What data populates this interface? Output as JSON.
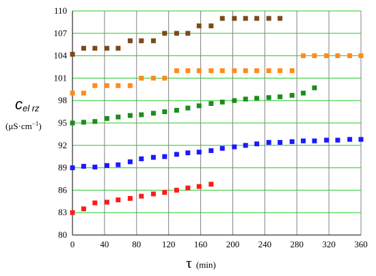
{
  "chart_data": {
    "type": "scatter",
    "title": "",
    "ylabel": {
      "symbol": "c",
      "subscript": "el rz",
      "unit_prefix": "(μS·cm",
      "unit_exp": "−1",
      "unit_suffix": ")"
    },
    "xlabel": {
      "symbol": "τ",
      "unit": "(min)"
    },
    "xlim": [
      0,
      360
    ],
    "ylim": [
      80,
      110
    ],
    "x_ticks": [
      "0",
      "40",
      "80",
      "120",
      "160",
      "200",
      "240",
      "280",
      "320",
      "360"
    ],
    "y_ticks": [
      "80",
      "83",
      "86",
      "89",
      "92",
      "95",
      "98",
      "101",
      "104",
      "107",
      "110"
    ],
    "grid": {
      "horizontal_color": "#22cc22",
      "vertical_color": "#808080"
    },
    "series": [
      {
        "color": "#7a4a1a",
        "x": [
          0,
          14,
          28,
          43,
          57,
          72,
          86,
          101,
          115,
          130,
          144,
          158,
          173,
          187,
          202,
          216,
          230,
          245,
          259
        ],
        "y": [
          104.2,
          105,
          105,
          105,
          105,
          106,
          106,
          106,
          107,
          107,
          107,
          108,
          108,
          109,
          109,
          109,
          109,
          109,
          109
        ]
      },
      {
        "color": "#ff8c1a",
        "x": [
          0,
          14,
          28,
          43,
          57,
          72,
          86,
          101,
          115,
          130,
          144,
          158,
          173,
          187,
          202,
          216,
          230,
          245,
          259,
          274,
          288,
          302,
          317,
          331,
          346,
          360
        ],
        "y": [
          99,
          99,
          100,
          100,
          100,
          100,
          101,
          101,
          101,
          102,
          102,
          102,
          102,
          102,
          102,
          102,
          102,
          102,
          102,
          102,
          104,
          104,
          104,
          104,
          104,
          104
        ]
      },
      {
        "color": "#1e8c1e",
        "x": [
          0,
          14,
          28,
          43,
          57,
          72,
          86,
          101,
          115,
          130,
          144,
          158,
          173,
          187,
          202,
          216,
          230,
          245,
          259,
          274,
          288,
          302
        ],
        "y": [
          95.0,
          95.1,
          95.2,
          95.6,
          95.8,
          96.0,
          96.1,
          96.3,
          96.5,
          96.7,
          97.0,
          97.3,
          97.6,
          97.8,
          98.0,
          98.2,
          98.3,
          98.4,
          98.5,
          98.7,
          99.0,
          99.7
        ]
      },
      {
        "color": "#1a1aff",
        "x": [
          0,
          14,
          28,
          43,
          57,
          72,
          86,
          101,
          115,
          130,
          144,
          158,
          173,
          187,
          202,
          216,
          230,
          245,
          259,
          274,
          288,
          302,
          317,
          331,
          346,
          360
        ],
        "y": [
          89,
          89.2,
          89.1,
          89.3,
          89.4,
          89.8,
          90.2,
          90.4,
          90.5,
          90.8,
          91.0,
          91.1,
          91.3,
          91.6,
          91.8,
          92.0,
          92.2,
          92.4,
          92.4,
          92.5,
          92.6,
          92.6,
          92.7,
          92.7,
          92.8,
          92.8
        ]
      },
      {
        "color": "#ff1a1a",
        "x": [
          0,
          14,
          28,
          43,
          57,
          72,
          86,
          101,
          115,
          130,
          144,
          158,
          173
        ],
        "y": [
          83,
          83.5,
          84.3,
          84.4,
          84.7,
          84.9,
          85.2,
          85.5,
          85.7,
          86.0,
          86.3,
          86.5,
          86.8
        ]
      }
    ]
  }
}
